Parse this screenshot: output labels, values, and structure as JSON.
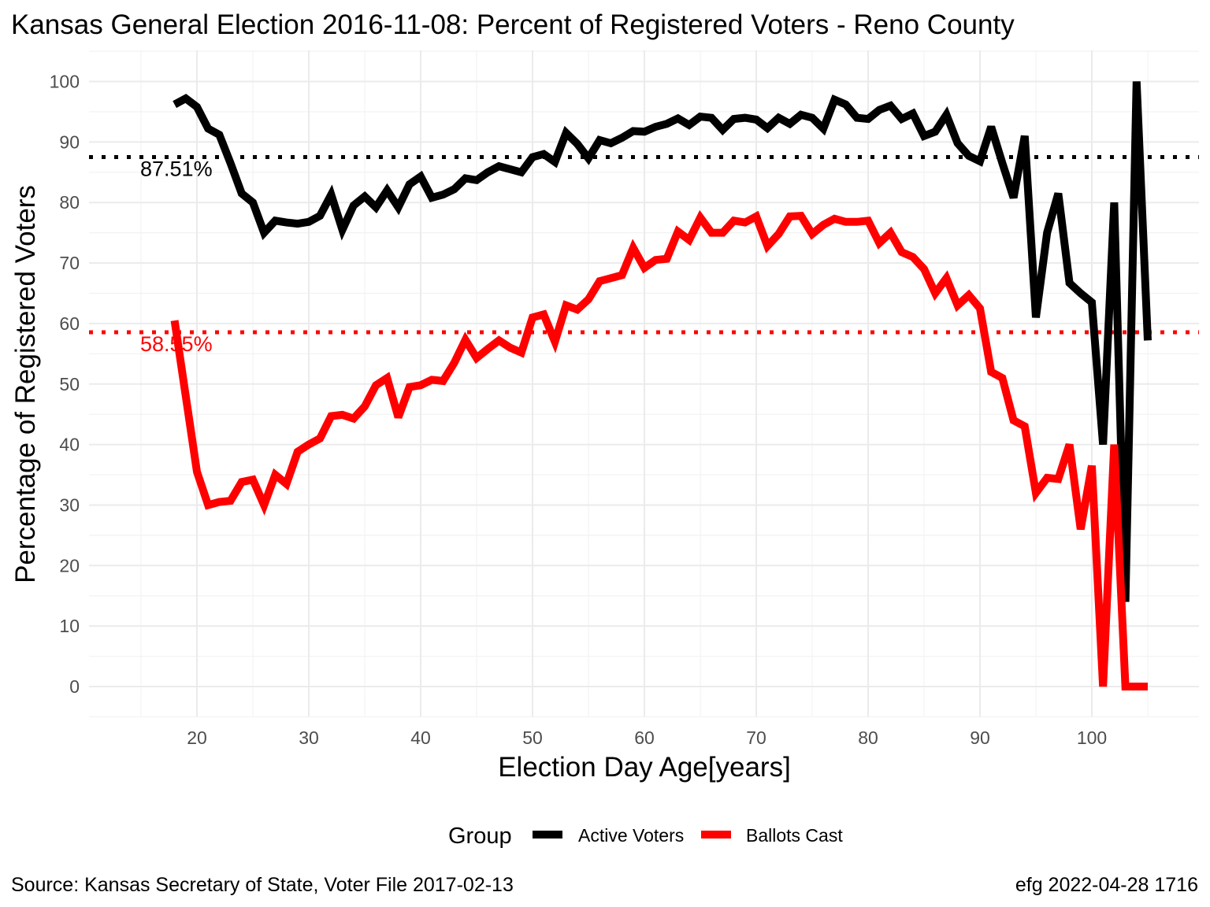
{
  "chart_data": {
    "type": "line",
    "title": "Kansas General Election 2016-11-08:  Percent of Registered Voters - Reno County",
    "xlabel": "Election Day Age[years]",
    "ylabel": "Percentage of Registered Voters",
    "xlim": [
      18,
      105
    ],
    "ylim": [
      0,
      100
    ],
    "x_ticks": [
      20,
      30,
      40,
      50,
      60,
      70,
      80,
      90,
      100
    ],
    "y_ticks": [
      0,
      10,
      20,
      30,
      40,
      50,
      60,
      70,
      80,
      90,
      100
    ],
    "grid": true,
    "legend": {
      "title": "Group",
      "position": "bottom"
    },
    "x": [
      18,
      19,
      20,
      21,
      22,
      23,
      24,
      25,
      26,
      27,
      28,
      29,
      30,
      31,
      32,
      33,
      34,
      35,
      36,
      37,
      38,
      39,
      40,
      41,
      42,
      43,
      44,
      45,
      46,
      47,
      48,
      49,
      50,
      51,
      52,
      53,
      54,
      55,
      56,
      57,
      58,
      59,
      60,
      61,
      62,
      63,
      64,
      65,
      66,
      67,
      68,
      69,
      70,
      71,
      72,
      73,
      74,
      75,
      76,
      77,
      78,
      79,
      80,
      81,
      82,
      83,
      84,
      85,
      86,
      87,
      88,
      89,
      90,
      91,
      92,
      93,
      94,
      95,
      96,
      97,
      98,
      99,
      100,
      101,
      102,
      103,
      104,
      105
    ],
    "series": [
      {
        "name": "Active Voters",
        "color": "#000000",
        "values": [
          96.2,
          97.2,
          95.8,
          92.2,
          91.2,
          86.5,
          81.5,
          80.0,
          75.0,
          77.0,
          76.7,
          76.5,
          76.8,
          77.8,
          81.3,
          75.5,
          79.5,
          81.0,
          79.2,
          82.0,
          79.2,
          83.0,
          84.3,
          80.8,
          81.3,
          82.2,
          84.0,
          83.7,
          85.0,
          86.0,
          85.5,
          85.0,
          87.5,
          88.0,
          86.7,
          91.5,
          89.7,
          87.3,
          90.3,
          89.8,
          90.7,
          91.8,
          91.7,
          92.5,
          93.0,
          93.9,
          92.8,
          94.2,
          94.0,
          92.0,
          93.8,
          94.0,
          93.7,
          92.3,
          94.0,
          93.0,
          94.5,
          94.0,
          92.2,
          97.0,
          96.2,
          94.0,
          93.8,
          95.3,
          96.0,
          93.8,
          94.7,
          91.0,
          91.7,
          94.5,
          89.8,
          87.7,
          86.8,
          92.5,
          86.5,
          80.8,
          91.0,
          61.0,
          75.0,
          81.5,
          66.7,
          65.0,
          63.5,
          40.0,
          80.0,
          14.0,
          100.0,
          57.2
        ]
      },
      {
        "name": "Ballots Cast",
        "color": "#ff0000",
        "values": [
          60.5,
          48.0,
          35.5,
          30.0,
          30.5,
          30.7,
          33.8,
          34.2,
          30.0,
          35.0,
          33.5,
          38.8,
          40.0,
          41.0,
          44.7,
          44.9,
          44.3,
          46.3,
          49.8,
          51.0,
          44.5,
          49.5,
          49.8,
          50.7,
          50.5,
          53.5,
          57.3,
          54.3,
          55.8,
          57.2,
          56.0,
          55.2,
          61.0,
          61.5,
          57.0,
          63.0,
          62.3,
          64.0,
          67.0,
          67.5,
          68.0,
          72.5,
          69.2,
          70.5,
          70.7,
          75.2,
          73.8,
          77.5,
          75.0,
          75.0,
          77.0,
          76.7,
          77.7,
          72.8,
          74.8,
          77.7,
          77.8,
          74.8,
          76.3,
          77.3,
          76.8,
          76.8,
          77.0,
          73.3,
          75.0,
          71.8,
          71.0,
          69.0,
          65.0,
          67.5,
          63.0,
          64.7,
          62.5,
          52.0,
          51.0,
          44.0,
          43.0,
          32.0,
          34.5,
          34.3,
          40.0,
          26.0,
          36.5,
          0.0,
          40.0,
          0.0,
          0.0,
          0.0
        ]
      }
    ],
    "reference_lines": [
      {
        "y": 87.51,
        "label": "87.51%",
        "color": "#000000",
        "style": "dotted"
      },
      {
        "y": 58.55,
        "label": "58.55%",
        "color": "#ff0000",
        "style": "dotted"
      }
    ],
    "caption_left": "Source:  Kansas Secretary of State, Voter File  2017-02-13",
    "caption_right": "efg 2022-04-28 1716"
  }
}
